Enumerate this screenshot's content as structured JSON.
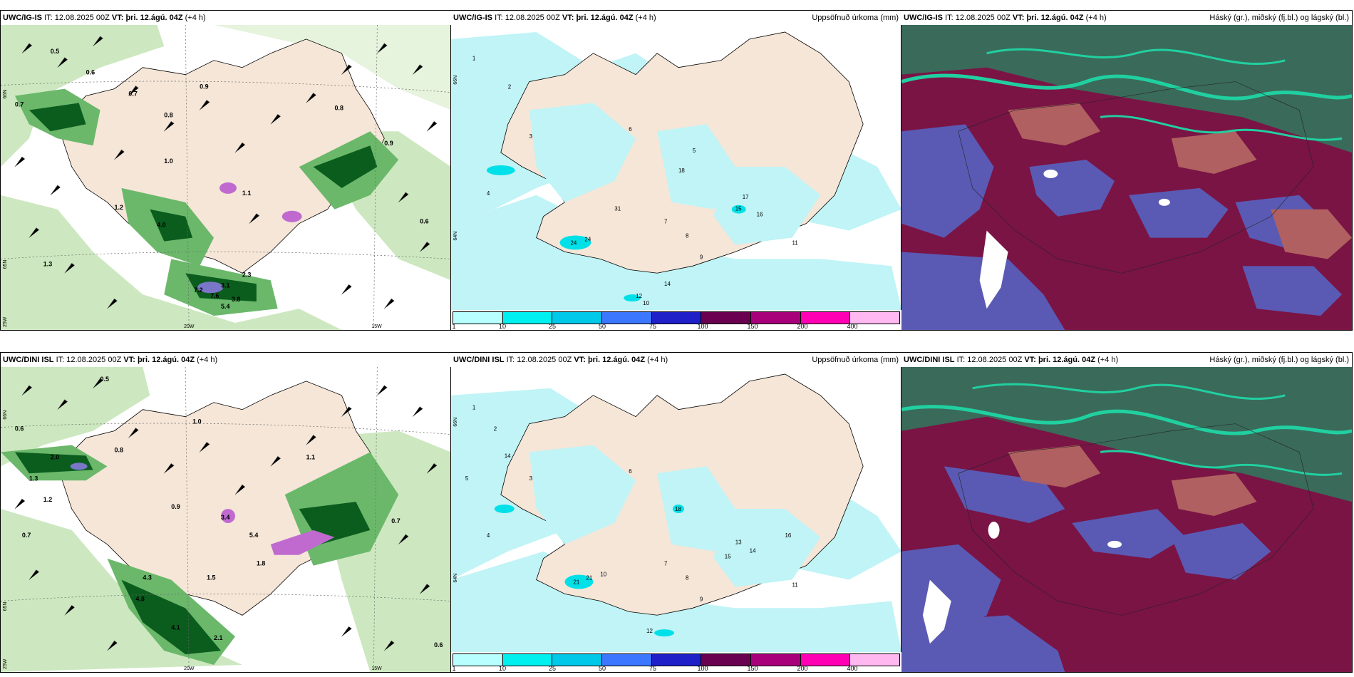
{
  "panels": [
    {
      "id": "top-left",
      "model": "UWC/IG-IS",
      "it_label": "IT:",
      "it": "12.08.2025 00Z",
      "vt_label": "VT:",
      "vt": "þri. 12.ágú. 04Z",
      "lead": "(+4 h)",
      "right_title": ""
    },
    {
      "id": "top-middle",
      "model": "UWC/IG-IS",
      "it_label": "IT:",
      "it": "12.08.2025 00Z",
      "vt_label": "VT:",
      "vt": "þri. 12.ágú. 04Z",
      "lead": "(+4 h)",
      "right_title": "Uppsöfnuð úrkoma (mm)"
    },
    {
      "id": "top-right",
      "model": "UWC/IG-IS",
      "it_label": "IT:",
      "it": "12.08.2025 00Z",
      "vt_label": "VT:",
      "vt": "þri. 12.ágú. 04Z",
      "lead": "(+4 h)",
      "right_title": "Háský (gr.), miðský (fj.bl.) og lágský (bl.)"
    },
    {
      "id": "bottom-left",
      "model": "UWC/DINI ISL",
      "it_label": "IT:",
      "it": "12.08.2025 00Z",
      "vt_label": "VT:",
      "vt": "þri. 12.ágú. 04Z",
      "lead": "(+4 h)",
      "right_title": ""
    },
    {
      "id": "bottom-middle",
      "model": "UWC/DINI ISL",
      "it_label": "IT:",
      "it": "12.08.2025 00Z",
      "vt_label": "VT:",
      "vt": "þri. 12.ágú. 04Z",
      "lead": "(+4 h)",
      "right_title": "Uppsöfnuð úrkoma (mm)"
    },
    {
      "id": "bottom-right",
      "model": "UWC/DINI ISL",
      "it_label": "IT:",
      "it": "12.08.2025 00Z",
      "vt_label": "VT:",
      "vt": "þri. 12.ágú. 04Z",
      "lead": "(+4 h)",
      "right_title": "Háský (gr.), miðský (fj.bl.) og lágský (bl.)"
    }
  ],
  "axis_labels": {
    "lat_66": "66N",
    "lat_65": "65N",
    "lat_64": "64N",
    "lon_20": "20W",
    "lon_15": "15W",
    "lon_25": "25W"
  },
  "colorbar": {
    "labels": [
      "1",
      "10",
      "25",
      "50",
      "75",
      "100",
      "150",
      "200",
      "400"
    ],
    "colors": [
      "#b8ffff",
      "#00f0f0",
      "#00c8e8",
      "#3c78ff",
      "#2020c8",
      "#6a0050",
      "#a8007a",
      "#ff00b4",
      "#ffb8f0"
    ]
  },
  "colors": {
    "land": "#f5e6d8",
    "precip_light": "#c0f4f6",
    "precip_med": "#00e0e8",
    "wind_green_light": "#cde8c0",
    "wind_green_med": "#6bb86b",
    "wind_green_dark": "#0b5d1e",
    "cloud_high": "#3a6a5a",
    "cloud_mid": "#7a1445",
    "cloud_low": "#5a5ab4",
    "cloud_edge": "#20d0a0"
  },
  "icons": {
    "wind_barb": "wind-barb-icon",
    "coastline": "coastline"
  },
  "map_values_top_left": [
    "0.5",
    "0.6",
    "0.7",
    "0.8",
    "0.9",
    "1.0",
    "1.1",
    "1.2",
    "1.3",
    "2.3",
    "3.1",
    "3.8",
    "4.0",
    "5.4",
    "7.2",
    "7.6",
    "0.8",
    "0.6",
    "0.7",
    "0.9"
  ],
  "map_values_bottom_left": [
    "0.5",
    "0.6",
    "0.7",
    "0.8",
    "0.9",
    "1.0",
    "1.1",
    "1.2",
    "1.3",
    "1.5",
    "1.8",
    "2.0",
    "2.1",
    "3.4",
    "4.1",
    "4.3",
    "4.8",
    "5.4",
    "0.7",
    "0.6"
  ],
  "map_values_top_middle": [
    "1",
    "2",
    "3",
    "4",
    "5",
    "6",
    "7",
    "8",
    "9",
    "10",
    "11",
    "12",
    "14",
    "15",
    "16",
    "17",
    "18",
    "24",
    "24",
    "31"
  ],
  "map_values_bottom_middle": [
    "1",
    "2",
    "3",
    "4",
    "5",
    "6",
    "7",
    "8",
    "9",
    "10",
    "11",
    "12",
    "13",
    "14",
    "15",
    "16",
    "18",
    "21",
    "21",
    "14"
  ]
}
